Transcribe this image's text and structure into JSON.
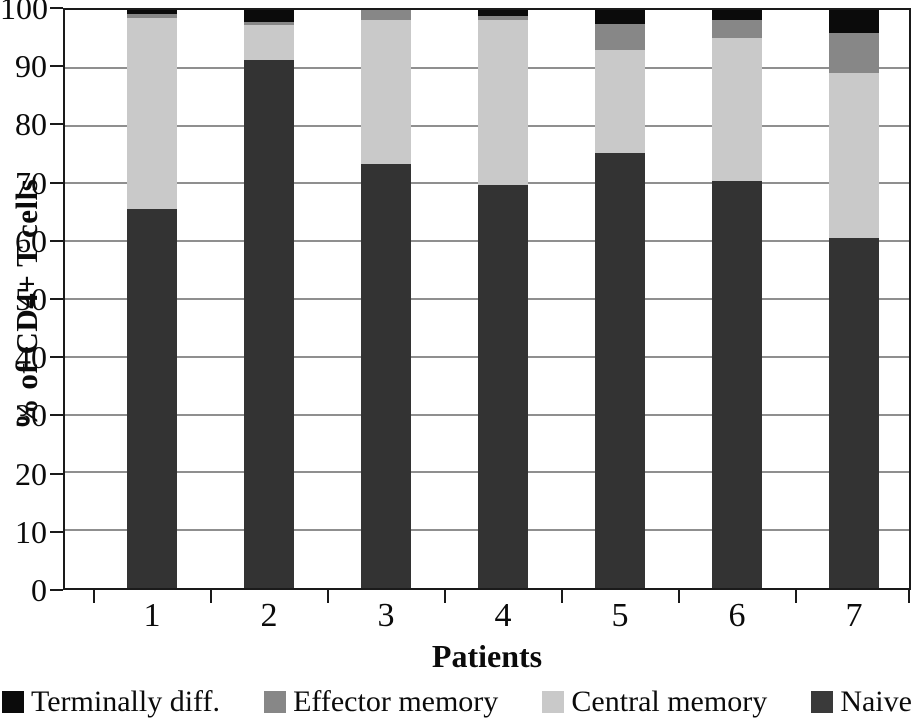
{
  "chart_data": {
    "type": "bar",
    "stacked": true,
    "title": "",
    "xlabel": "Patients",
    "ylabel": "% of CD4+ T cells",
    "ylim": [
      0,
      100
    ],
    "yticks": [
      0,
      10,
      20,
      30,
      40,
      50,
      60,
      70,
      80,
      90,
      100
    ],
    "grid": "horizontal",
    "gridline_color": "#8f8f8f",
    "frame_color": "#1a1a1a",
    "categories": [
      "1",
      "2",
      "3",
      "4",
      "5",
      "6",
      "7"
    ],
    "stack_order_bottom_to_top": [
      "Naive",
      "Central memory",
      "Effector memory",
      "Terminally diff."
    ],
    "series": [
      {
        "name": "Naive",
        "color": "#333333",
        "values": [
          65.5,
          91.4,
          73.3,
          69.8,
          75.3,
          70.5,
          60.5
        ]
      },
      {
        "name": "Central memory",
        "color": "#c9c9c9",
        "values": [
          33.2,
          6.0,
          25.0,
          28.5,
          17.7,
          24.7,
          28.6
        ]
      },
      {
        "name": "Effector memory",
        "color": "#878787",
        "values": [
          0.6,
          0.6,
          1.7,
          0.7,
          4.6,
          3.0,
          6.9
        ]
      },
      {
        "name": "Terminally diff.",
        "color": "#0b0b0b",
        "values": [
          0.7,
          2.0,
          0.0,
          1.0,
          2.4,
          1.8,
          4.0
        ]
      }
    ],
    "legend_position": "bottom",
    "legend": [
      {
        "label": "Terminally diff.",
        "color": "#0b0b0b"
      },
      {
        "label": "Effector memory",
        "color": "#878787"
      },
      {
        "label": "Central memory",
        "color": "#c9c9c9"
      },
      {
        "label": "Naive",
        "color": "#3a3a3a"
      }
    ]
  }
}
